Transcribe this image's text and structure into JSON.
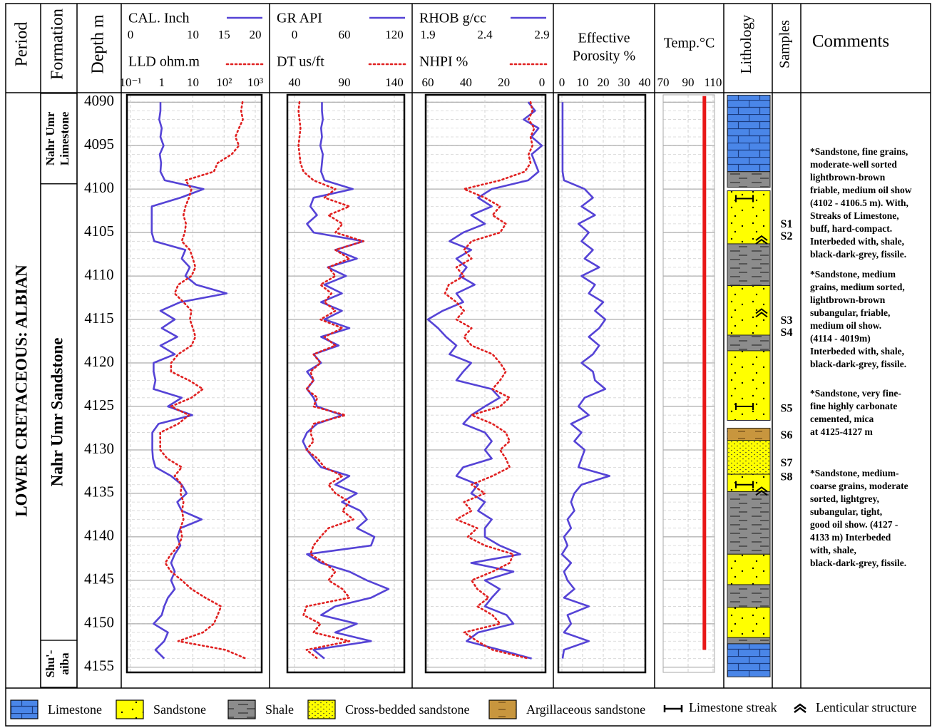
{
  "chart_data": {
    "type": "well_log",
    "period_label": "Period",
    "formation_label": "Formation",
    "depth_label": "Depth m",
    "period": "LOWER CRETACEOUS: ALBIAN",
    "formations": [
      {
        "name": [
          "Nahr Umr",
          "Limestone"
        ],
        "top": 4089,
        "base": 4099.4
      },
      {
        "name": [
          "Nahr Umr Sandstone"
        ],
        "top": 4099.4,
        "base": 4151.9
      },
      {
        "name": [
          "Shu'-",
          "aiba"
        ],
        "top": 4151.9,
        "base": 4157.3
      }
    ],
    "ylim": [
      4089,
      4156
    ],
    "yticks": [
      4090,
      4095,
      4100,
      4105,
      4110,
      4115,
      4120,
      4125,
      4130,
      4135,
      4140,
      4145,
      4150,
      4155
    ],
    "depth": [
      4090,
      4091,
      4092,
      4093,
      4094,
      4095,
      4096,
      4097,
      4098,
      4099,
      4100,
      4101,
      4102,
      4103,
      4104,
      4105,
      4106,
      4107,
      4108,
      4109,
      4110,
      4111,
      4112,
      4113,
      4114,
      4115,
      4116,
      4117,
      4118,
      4119,
      4120,
      4121,
      4122,
      4123,
      4124,
      4125,
      4126,
      4127,
      4128,
      4129,
      4130,
      4131,
      4132,
      4133,
      4134,
      4135,
      4136,
      4137,
      4138,
      4139,
      4140,
      4141,
      4142,
      4143,
      4144,
      4145,
      4146,
      4147,
      4148,
      4149,
      4150,
      4151,
      4152,
      4153,
      4154
    ],
    "tracks": [
      {
        "series": [
          {
            "name": "CAL. Inch",
            "color": "#5543d6",
            "style": "solid",
            "xlim": [
              0,
              20
            ],
            "xticks": [
              0,
              10,
              15,
              20
            ],
            "values": [
              4.8,
              4.8,
              4.6,
              5.0,
              4.8,
              5.3,
              4.7,
              4.9,
              4.8,
              5.5,
              11.7,
              8.0,
              3.4,
              3.4,
              3.4,
              3.4,
              3.8,
              8.8,
              8.2,
              9.5,
              8.8,
              10.5,
              15.4,
              8.0,
              4.8,
              7.1,
              5.0,
              7.5,
              4.8,
              7.1,
              3.7,
              3.7,
              4.0,
              3.7,
              8.2,
              6.0,
              9.9,
              4.5,
              3.5,
              3.5,
              3.5,
              3.6,
              4.0,
              6.5,
              8.2,
              9.0,
              7.5,
              8.2,
              11.4,
              8.0,
              7.5,
              8.0,
              7.1,
              6.5,
              7.1,
              6.5,
              7.1,
              6.0,
              5.4,
              5.0,
              3.7,
              6.0,
              5.4,
              4.0,
              5.4
            ]
          },
          {
            "name": "LLD ohm.m",
            "color": "#e02020",
            "style": "dotted",
            "log": true,
            "xlim": [
              0.1,
              1000
            ],
            "xticks": [
              {
                "value": 0.1,
                "label": "10⁻¹"
              },
              1,
              10,
              {
                "value": 100,
                "label": "10²"
              },
              {
                "value": 1000,
                "label": "10³"
              }
            ],
            "values": [
              390,
              350,
              400,
              300,
              230,
              300,
              175,
              62,
              47,
              5.8,
              9,
              7.5,
              5.8,
              5,
              6,
              5.5,
              4.4,
              8,
              10,
              12,
              9,
              3.4,
              2.6,
              5,
              9,
              8,
              10,
              12,
              9,
              3.4,
              2,
              2,
              7.5,
              21,
              9,
              2,
              7.5,
              3.4,
              0.9,
              0.9,
              0.9,
              1.5,
              4.4,
              2.6,
              4.4,
              4,
              5,
              4.5,
              5,
              4,
              4.5,
              3.5,
              2,
              1.3,
              2,
              4.4,
              9,
              25,
              80,
              62,
              47,
              21,
              3.4,
              110,
              500
            ]
          }
        ]
      },
      {
        "series": [
          {
            "name": "GR API",
            "color": "#5543d6",
            "style": "solid",
            "xlim": [
              0,
              120
            ],
            "xticks": [
              0,
              60,
              120
            ],
            "values": [
              33,
              33,
              34,
              32,
              33,
              31,
              34,
              33,
              32,
              36,
              70,
              23,
              19,
              27,
              15,
              23,
              83,
              49,
              75,
              40,
              62,
              36,
              57,
              32,
              57,
              36,
              66,
              32,
              53,
              23,
              32,
              15,
              23,
              15,
              23,
              27,
              57,
              27,
              15,
              10,
              15,
              23,
              32,
              66,
              49,
              75,
              57,
              79,
              87,
              75,
              96,
              92,
              15,
              32,
              66,
              87,
              113,
              92,
              49,
              32,
              75,
              49,
              92,
              23,
              36
            ]
          },
          {
            "name": "DT us/ft",
            "color": "#e02020",
            "style": "dotted",
            "xlim": [
              40,
              140
            ],
            "xticks": [
              40,
              90,
              140
            ],
            "values": [
              45,
              44,
              45,
              46,
              45,
              44,
              45,
              46,
              49,
              59,
              81,
              70,
              95,
              74,
              88,
              81,
              109,
              81,
              95,
              74,
              81,
              66,
              77,
              70,
              81,
              66,
              88,
              70,
              81,
              59,
              66,
              56,
              59,
              52,
              63,
              59,
              91,
              59,
              56,
              59,
              52,
              63,
              70,
              88,
              74,
              81,
              95,
              88,
              99,
              74,
              66,
              59,
              56,
              70,
              81,
              74,
              88,
              95,
              52,
              49,
              66,
              59,
              95,
              52,
              63
            ]
          }
        ]
      },
      {
        "series": [
          {
            "name": "RHOB g/cc",
            "color": "#5543d6",
            "style": "solid",
            "xlim": [
              1.9,
              2.9
            ],
            "xticks": [
              1.9,
              2.4,
              2.9
            ],
            "values": [
              2.78,
              2.84,
              2.74,
              2.87,
              2.81,
              2.9,
              2.81,
              2.84,
              2.87,
              2.78,
              2.46,
              2.34,
              2.46,
              2.28,
              2.4,
              2.21,
              2.09,
              2.28,
              2.15,
              2.24,
              2.18,
              2.31,
              2.15,
              2.21,
              2.03,
              1.9,
              1.99,
              2.06,
              2.15,
              2.09,
              2.28,
              2.21,
              2.15,
              2.46,
              2.53,
              2.4,
              2.28,
              2.21,
              2.4,
              2.46,
              2.4,
              2.46,
              2.21,
              2.15,
              2.34,
              2.28,
              2.4,
              2.34,
              2.46,
              2.4,
              2.4,
              2.53,
              2.71,
              2.28,
              2.65,
              2.4,
              2.53,
              2.46,
              2.4,
              2.59,
              2.65,
              2.34,
              2.24,
              2.53,
              2.81
            ]
          },
          {
            "name": "NHPI %",
            "color": "#e02020",
            "style": "dotted",
            "xlim": [
              60,
              0
            ],
            "xticks": [
              60,
              40,
              20,
              0
            ],
            "values": [
              6,
              5,
              7,
              4,
              6,
              5,
              7,
              6,
              9,
              22,
              41,
              30,
              22,
              26,
              19,
              22,
              37,
              41,
              37,
              45,
              41,
              49,
              51,
              45,
              41,
              45,
              37,
              41,
              37,
              26,
              22,
              19,
              22,
              26,
              17,
              22,
              37,
              26,
              19,
              17,
              22,
              19,
              17,
              26,
              37,
              30,
              41,
              37,
              45,
              34,
              39,
              30,
              15,
              17,
              26,
              37,
              34,
              28,
              34,
              26,
              22,
              41,
              34,
              26,
              7
            ]
          }
        ]
      },
      {
        "title": [
          "Effective",
          "Porosity %"
        ],
        "series": [
          {
            "color": "#5543d6",
            "style": "solid",
            "xlim": [
              0,
              40
            ],
            "xticks": [
              0,
              10,
              20,
              30,
              40
            ],
            "values": [
              0.3,
              0.3,
              0.3,
              0.3,
              0.3,
              0.3,
              0.3,
              0.3,
              0.3,
              1,
              11,
              15,
              9.5,
              16,
              8,
              13,
              9.5,
              15,
              11,
              18,
              9.5,
              16,
              13,
              20,
              16,
              21,
              18,
              13,
              18,
              15,
              9.5,
              15,
              16,
              21,
              11,
              8,
              13,
              4.4,
              9.5,
              6,
              11,
              9.5,
              8,
              23,
              9.5,
              6,
              4.4,
              6,
              2.7,
              4.4,
              1,
              2.7,
              0,
              4.4,
              1,
              2.7,
              6,
              1,
              13,
              2.7,
              4.4,
              1,
              13,
              1,
              0.3
            ]
          }
        ]
      },
      {
        "title": [
          "Temp.°C"
        ],
        "series": [
          {
            "color": "#e81818",
            "style": "thick",
            "xlim": [
              70,
              110
            ],
            "xticks": [
              70,
              90,
              110
            ],
            "depth": [
              4089.3,
              4153
            ],
            "values": [
              103,
              103
            ]
          }
        ]
      }
    ],
    "lithology_label": "Lithology",
    "lithology": [
      {
        "rock": "Limestone",
        "top": 4089.2,
        "base": 4098.0
      },
      {
        "rock": "Shale",
        "top": 4098.0,
        "base": 4099.8
      },
      {
        "rock": "Sandstone",
        "top": 4100.2,
        "base": 4106.3
      },
      {
        "rock": "Shale",
        "top": 4106.3,
        "base": 4111.1
      },
      {
        "rock": "Sandstone",
        "top": 4111.1,
        "base": 4116.8
      },
      {
        "rock": "Shale",
        "top": 4116.8,
        "base": 4118.6
      },
      {
        "rock": "Sandstone",
        "top": 4118.6,
        "base": 4126.6
      },
      {
        "rock": "Argillaceous sandstone",
        "top": 4127.5,
        "base": 4128.9
      },
      {
        "rock": "Cross-bedded sandstone",
        "top": 4128.9,
        "base": 4132.8
      },
      {
        "rock": "Sandstone",
        "top": 4132.8,
        "base": 4134.8
      },
      {
        "rock": "Shale",
        "top": 4134.8,
        "base": 4142.0
      },
      {
        "rock": "Sandstone",
        "top": 4142.0,
        "base": 4145.5
      },
      {
        "rock": "Shale",
        "top": 4145.5,
        "base": 4148.1
      },
      {
        "rock": "Sandstone",
        "top": 4148.1,
        "base": 4151.6
      },
      {
        "rock": "Shale",
        "top": 4151.6,
        "base": 4152.3
      },
      {
        "rock": "Limestone",
        "top": 4152.3,
        "base": 4156.1
      }
    ],
    "symbols": [
      {
        "symbol": "Limestone streak",
        "depth": 4101.1
      },
      {
        "symbol": "Limestone streak",
        "depth": 4125.0
      },
      {
        "symbol": "Limestone streak",
        "depth": 4134.0
      },
      {
        "symbol": "Lenticular structure",
        "depth": 4105.9
      },
      {
        "symbol": "Lenticular structure",
        "depth": 4114.3
      },
      {
        "symbol": "Lenticular structure",
        "depth": 4134.8
      }
    ],
    "samples_label": "Samples",
    "samples": [
      {
        "label": "S1",
        "depth": 4104.1
      },
      {
        "label": "S2",
        "depth": 4105.5
      },
      {
        "label": "S3",
        "depth": 4115.2
      },
      {
        "label": "S4",
        "depth": 4116.6
      },
      {
        "label": "S5",
        "depth": 4125.3
      },
      {
        "label": "S6",
        "depth": 4128.4
      },
      {
        "label": "S7",
        "depth": 4131.6
      },
      {
        "label": "S8",
        "depth": 4133.2
      }
    ],
    "comments_label": "Comments",
    "comments": [
      [
        "*Sandstone, fine grains,",
        "moderate-well  sorted",
        "lightbrown-brown",
        "friable, medium oil show",
        "(4102 - 4106.5 m). With,",
        "Streaks of Limestone,",
        "buff, hard-compact.",
        "Interbeded with, shale,",
        "black-dark-grey, fissile."
      ],
      [
        "*Sandstone, medium",
        "grains, medium sorted,",
        "lightbrown-brown",
        "subangular, friable,",
        "medium oil show.",
        "(4114 - 4019m)",
        "Interbeded with, shale,",
        "black-dark-grey, fissile."
      ],
      [
        "*Sandstone, very fine-",
        "fine highly carbonate",
        "cemented, mica",
        "at 4125-4127 m"
      ],
      [
        "*Sandstone, medium-",
        "coarse grains, moderate",
        "sorted, lightgrey,",
        "subangular, tight,",
        "good oil show. (4127 -",
        "4133 m) Interbeded",
        "with, shale,",
        "black-dark-grey, fissile."
      ]
    ],
    "legend": [
      {
        "label": "Limestone",
        "pattern": "bricks"
      },
      {
        "label": "Sandstone",
        "pattern": "dots"
      },
      {
        "label": "Shale",
        "pattern": "dashes"
      },
      {
        "label": "Cross-bedded sandstone",
        "pattern": "dense-dots"
      },
      {
        "label": "Argillaceous sandstone",
        "pattern": "argil"
      },
      {
        "label": "Limestone streak",
        "symbol": "streak"
      },
      {
        "label": "Lenticular structure",
        "symbol": "chevron"
      }
    ]
  }
}
